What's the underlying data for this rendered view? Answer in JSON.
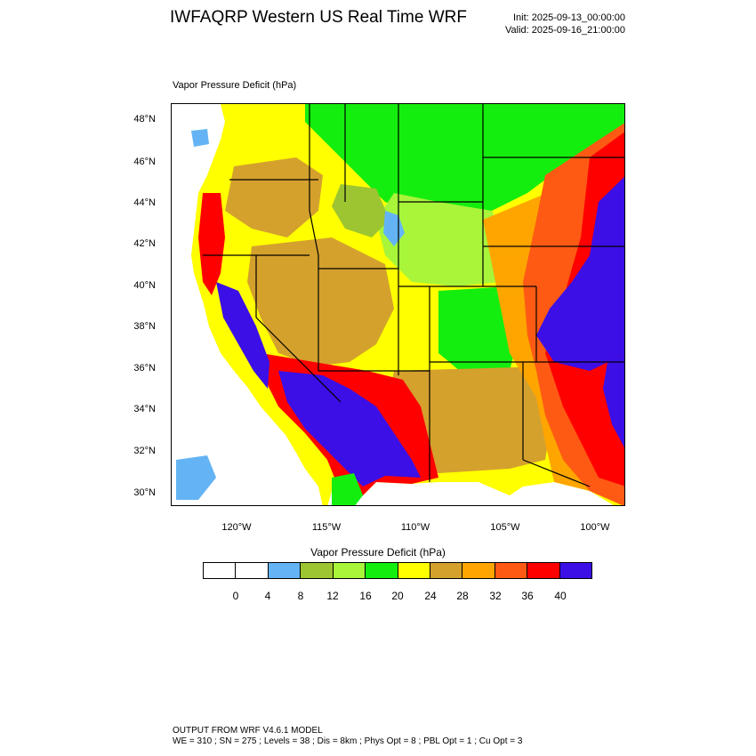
{
  "header": {
    "title": "IWFAQRP Western US Real Time WRF",
    "init": "Init: 2025-09-13_00:00:00",
    "valid": "Valid: 2025-09-16_21:00:00"
  },
  "panel": {
    "title": "Vapor Pressure Deficit   (hPa)"
  },
  "map": {
    "lat_labels": [
      "48°N",
      "46°N",
      "44°N",
      "42°N",
      "40°N",
      "38°N",
      "36°N",
      "34°N",
      "32°N",
      "30°N"
    ],
    "lon_labels": [
      "120°W",
      "115°W",
      "110°W",
      "105°W",
      "100°W"
    ],
    "colors": {
      "ocean": "#ffffff",
      "c0_4": "#ffffff",
      "c4_8": "#64b4f5",
      "c8_12": "#9dc531",
      "c12_16": "#a8f53a",
      "c16_20": "#14ee0e",
      "c20_24": "#ffff00",
      "c24_28": "#d4a12d",
      "c28_32": "#ffa500",
      "c32_36": "#ff5a14",
      "c36_40": "#ff0000",
      "c40_plus": "#3c0fe6"
    }
  },
  "colorbar": {
    "title": "Vapor Pressure Deficit  (hPa)",
    "colors": [
      "#ffffff",
      "#ffffff",
      "#64b4f5",
      "#9dc531",
      "#a8f53a",
      "#14ee0e",
      "#ffff00",
      "#d4a12d",
      "#ffa500",
      "#ff5a14",
      "#ff0000",
      "#3c0fe6"
    ],
    "labels": [
      "0",
      "4",
      "8",
      "12",
      "16",
      "20",
      "24",
      "28",
      "32",
      "36",
      "40"
    ]
  },
  "footer": {
    "line1": "OUTPUT FROM WRF V4.6.1 MODEL",
    "line2": "WE = 310 ; SN = 275 ; Levels = 38 ; Dis = 8km ; Phys Opt = 8 ; PBL Opt = 1 ; Cu Opt = 3"
  }
}
